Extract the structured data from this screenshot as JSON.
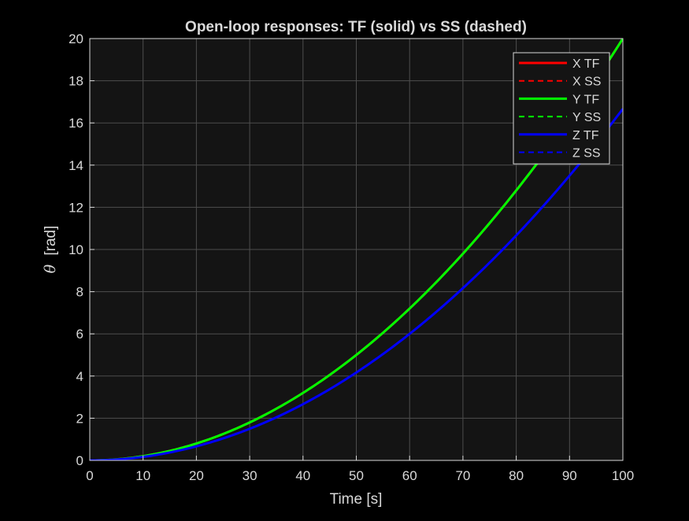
{
  "chart_data": {
    "type": "line",
    "title": "Open-loop responses: TF (solid) vs SS (dashed)",
    "xlabel": "Time [s]",
    "ylabel_symbol": "θ",
    "ylabel_unit": "[rad]",
    "xlim": [
      0,
      100
    ],
    "ylim": [
      0,
      20
    ],
    "xticks": [
      0,
      10,
      20,
      30,
      40,
      50,
      60,
      70,
      80,
      90,
      100
    ],
    "yticks": [
      0,
      2,
      4,
      6,
      8,
      10,
      12,
      14,
      16,
      18,
      20
    ],
    "grid": true,
    "legend_position": "top-right",
    "x": [
      0,
      10,
      20,
      30,
      40,
      50,
      60,
      70,
      80,
      90,
      100
    ],
    "series": [
      {
        "name": "X TF",
        "color": "#ff0000",
        "style": "solid",
        "values": [
          0,
          0.2,
          0.8,
          1.8,
          3.2,
          5.0,
          7.2,
          9.8,
          12.8,
          16.2,
          20.0
        ]
      },
      {
        "name": "X SS",
        "color": "#ff0000",
        "style": "dashed",
        "values": [
          0,
          0.2,
          0.8,
          1.8,
          3.2,
          5.0,
          7.2,
          9.8,
          12.8,
          16.2,
          20.0
        ]
      },
      {
        "name": "Y TF",
        "color": "#00ff00",
        "style": "solid",
        "values": [
          0,
          0.2,
          0.8,
          1.8,
          3.2,
          5.0,
          7.2,
          9.8,
          12.8,
          16.2,
          20.0
        ]
      },
      {
        "name": "Y SS",
        "color": "#00ff00",
        "style": "dashed",
        "values": [
          0,
          0.2,
          0.8,
          1.8,
          3.2,
          5.0,
          7.2,
          9.8,
          12.8,
          16.2,
          20.0
        ]
      },
      {
        "name": "Z TF",
        "color": "#0000ff",
        "style": "solid",
        "values": [
          0,
          0.167,
          0.667,
          1.5,
          2.667,
          4.167,
          6.0,
          8.167,
          10.667,
          13.5,
          16.667
        ]
      },
      {
        "name": "Z SS",
        "color": "#0000ff",
        "style": "dashed",
        "values": [
          0,
          0.167,
          0.667,
          1.5,
          2.667,
          4.167,
          6.0,
          8.167,
          10.667,
          13.5,
          16.667
        ]
      }
    ],
    "colors": {
      "figure_bg": "#000000",
      "axes_bg": "#141414",
      "grid": "#4d4d4d",
      "text": "#d9d9d9",
      "legend_bg": "#141414",
      "legend_border": "#d9d9d9"
    }
  }
}
